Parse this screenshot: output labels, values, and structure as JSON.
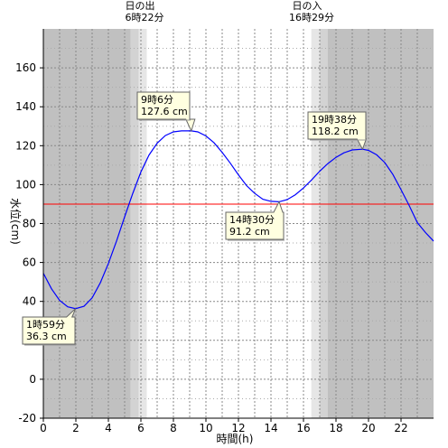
{
  "chart_data": {
    "type": "line",
    "title": "",
    "xlabel": "時間(h)",
    "ylabel": "水位(cm)",
    "xlim": [
      0,
      24
    ],
    "ylim": [
      -20,
      180
    ],
    "x_ticks": [
      0,
      2,
      4,
      6,
      8,
      10,
      12,
      14,
      16,
      18,
      20,
      22
    ],
    "y_ticks": [
      -20,
      0,
      20,
      40,
      60,
      80,
      100,
      120,
      140,
      160
    ],
    "grid": true,
    "line_color": "#0000ff",
    "reference_line": {
      "value": 90,
      "color": "#ff0000"
    },
    "daylight": {
      "sunrise_label": "日の出",
      "sunrise_time": "6時22分",
      "sunrise_hour": 6.367,
      "sunset_label": "日の入",
      "sunset_time": "16時29分",
      "sunset_hour": 16.483,
      "night_color": "#c0c0c0",
      "twilight_colors": [
        "#d3d3d3",
        "#e6e6e6"
      ],
      "day_color": "#ffffff"
    },
    "series": [
      {
        "values_x": [
          0,
          0.5,
          1,
          1.5,
          1.983,
          2.5,
          3,
          3.5,
          4,
          4.5,
          5,
          5.5,
          6,
          6.5,
          7,
          7.5,
          8,
          8.5,
          9.1,
          9.5,
          10,
          10.5,
          11,
          11.5,
          12,
          12.5,
          13,
          13.5,
          14,
          14.5,
          15,
          15.5,
          16,
          16.5,
          17,
          17.5,
          18,
          18.5,
          19,
          19.633,
          20,
          20.5,
          21,
          21.5,
          22,
          22.5,
          23,
          23.5,
          24
        ],
        "values_y": [
          54.5,
          46.5,
          40.5,
          37.2,
          36.3,
          37.5,
          41.8,
          49.5,
          59.5,
          71.0,
          83.5,
          95.5,
          106.5,
          115.2,
          121.3,
          125.2,
          127.1,
          127.6,
          127.6,
          127.1,
          125.0,
          121.5,
          116.5,
          111.0,
          105.0,
          99.5,
          95.5,
          92.5,
          91.4,
          91.2,
          92.3,
          94.8,
          98.3,
          102.4,
          106.9,
          110.8,
          114.0,
          116.4,
          117.8,
          118.2,
          117.6,
          115.3,
          111.3,
          105.2,
          97.4,
          89.3,
          80.5,
          75.4,
          71.0
        ]
      }
    ],
    "annotations": [
      {
        "time": "1時59分",
        "value": "36.3 cm",
        "x": 1.983,
        "y": 36.3
      },
      {
        "time": "9時6分",
        "value": "127.6 cm",
        "x": 9.1,
        "y": 127.6
      },
      {
        "time": "14時30分",
        "value": "91.2 cm",
        "x": 14.5,
        "y": 91.2
      },
      {
        "time": "19時38分",
        "value": "118.2 cm",
        "x": 19.633,
        "y": 118.2
      }
    ]
  }
}
